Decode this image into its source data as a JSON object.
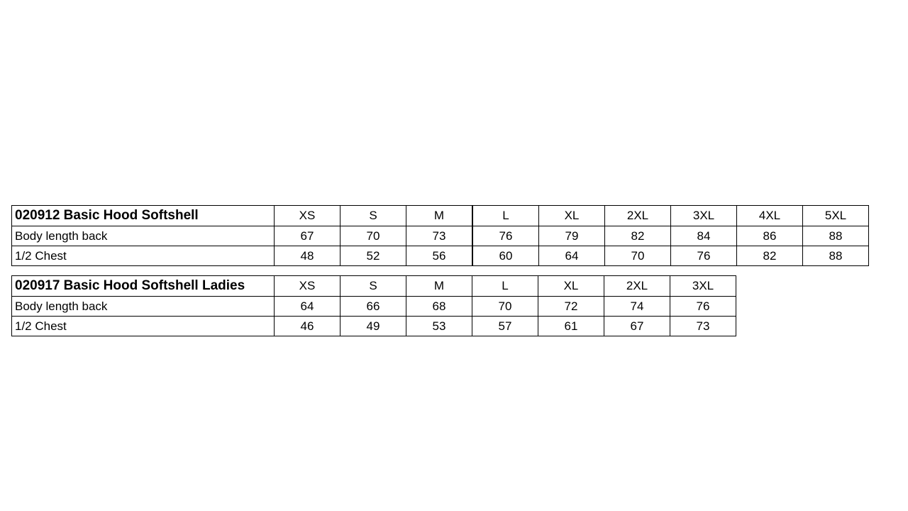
{
  "tables": [
    {
      "title": "020912 Basic Hood Softshell",
      "sizes": [
        "XS",
        "S",
        "M",
        "L",
        "XL",
        "2XL",
        "3XL",
        "4XL",
        "5XL"
      ],
      "rows": [
        {
          "label": "Body length back",
          "values": [
            "67",
            "70",
            "73",
            "76",
            "79",
            "82",
            "84",
            "86",
            "88"
          ]
        },
        {
          "label": "1/2 Chest",
          "values": [
            "48",
            "52",
            "56",
            "60",
            "64",
            "70",
            "76",
            "82",
            "88"
          ]
        }
      ]
    },
    {
      "title": "020917 Basic Hood Softshell Ladies",
      "sizes": [
        "XS",
        "S",
        "M",
        "L",
        "XL",
        "2XL",
        "3XL"
      ],
      "rows": [
        {
          "label": "Body length back",
          "values": [
            "64",
            "66",
            "68",
            "70",
            "72",
            "74",
            "76"
          ]
        },
        {
          "label": "1/2 Chest",
          "values": [
            "46",
            "49",
            "53",
            "57",
            "61",
            "67",
            "73"
          ]
        }
      ]
    }
  ]
}
